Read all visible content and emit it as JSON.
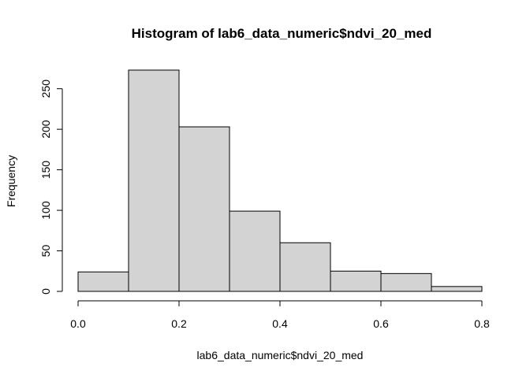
{
  "chart_data": {
    "type": "bar",
    "title": "Histogram of lab6_data_numeric$ndvi_20_med",
    "xlabel": "lab6_data_numeric$ndvi_20_med",
    "ylabel": "Frequency",
    "bins": [
      {
        "start": 0.0,
        "end": 0.1,
        "count": 24
      },
      {
        "start": 0.1,
        "end": 0.2,
        "count": 273
      },
      {
        "start": 0.2,
        "end": 0.3,
        "count": 203
      },
      {
        "start": 0.3,
        "end": 0.4,
        "count": 99
      },
      {
        "start": 0.4,
        "end": 0.5,
        "count": 60
      },
      {
        "start": 0.5,
        "end": 0.6,
        "count": 25
      },
      {
        "start": 0.6,
        "end": 0.7,
        "count": 22
      },
      {
        "start": 0.7,
        "end": 0.8,
        "count": 6
      }
    ],
    "xlim": [
      0,
      0.8
    ],
    "ylim": [
      0,
      273
    ],
    "xticks": [
      0.0,
      0.2,
      0.4,
      0.6,
      0.8
    ],
    "xtick_labels": [
      "0.0",
      "0.2",
      "0.4",
      "0.6",
      "0.8"
    ],
    "yticks": [
      0,
      50,
      100,
      150,
      200,
      250
    ],
    "ytick_labels": [
      "0",
      "50",
      "100",
      "150",
      "200",
      "250"
    ],
    "grid": false,
    "colors": {
      "bar_fill": "#d3d3d3",
      "bar_stroke": "#000000"
    }
  }
}
